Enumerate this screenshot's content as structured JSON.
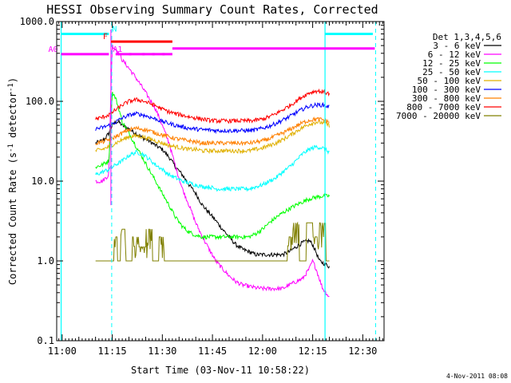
{
  "chart_data": {
    "type": "line",
    "title": "HESSI Observing Summary Count Rates, Corrected",
    "xlabel": "Start Time (03-Nov-11 10:58:22)",
    "ylabel": "Corrected Count Rate (s",
    "ylabel_sup1": "-1",
    "ylabel_mid": " detector",
    "ylabel_sup2": "-1",
    "ylabel_end": ")",
    "yscale": "log",
    "ylim": [
      0.1,
      1000
    ],
    "xlim_min": [
      -1.63,
      96.37
    ],
    "x_ticks": [
      {
        "min": 0,
        "label": "11:00"
      },
      {
        "min": 15,
        "label": "11:15"
      },
      {
        "min": 30,
        "label": "11:30"
      },
      {
        "min": 45,
        "label": "11:45"
      },
      {
        "min": 60,
        "label": "12:00"
      },
      {
        "min": 75,
        "label": "12:15"
      },
      {
        "min": 90,
        "label": "12:30"
      }
    ],
    "y_ticks": [
      {
        "v": 0.1,
        "label": "0.1"
      },
      {
        "v": 1,
        "label": "1.0"
      },
      {
        "v": 10,
        "label": "10.0"
      },
      {
        "v": 100,
        "label": "100.0"
      },
      {
        "v": 1000,
        "label": "1000.0"
      }
    ],
    "legend_title": "Det 1,3,4,5,6",
    "series": [
      {
        "name": "3 - 6 keV",
        "color": "#000000",
        "x": [
          10,
          12,
          13,
          14,
          15,
          16,
          17,
          18,
          20,
          22,
          24,
          26,
          28,
          30,
          32,
          34,
          36,
          38,
          40,
          42,
          44,
          46,
          48,
          50,
          52,
          54,
          56,
          58,
          60,
          62,
          64,
          66,
          68,
          70,
          72,
          74,
          75,
          76,
          77,
          78,
          79,
          80
        ],
        "y": [
          30,
          32,
          35,
          40,
          50,
          55,
          55,
          50,
          45,
          40,
          35,
          32,
          28,
          25,
          20,
          15,
          12,
          9,
          7,
          5,
          4,
          3.2,
          2.5,
          2,
          1.6,
          1.4,
          1.3,
          1.2,
          1.2,
          1.2,
          1.2,
          1.2,
          1.3,
          1.5,
          1.7,
          1.8,
          1.6,
          1.3,
          1.0,
          0.95,
          0.9,
          0.85
        ]
      },
      {
        "name": "6 - 12 keV",
        "color": "#ff00ff",
        "x": [
          10,
          12,
          14,
          14.5,
          15,
          16,
          17,
          18,
          20,
          22,
          24,
          26,
          28,
          30,
          32,
          34,
          36,
          38,
          40,
          42,
          44,
          46,
          48,
          50,
          52,
          54,
          56,
          58,
          60,
          62,
          64,
          66,
          68,
          70,
          72,
          74,
          75,
          76,
          77,
          78,
          79,
          80
        ],
        "y": [
          10,
          10,
          12,
          100,
          500,
          450,
          400,
          330,
          260,
          200,
          150,
          110,
          80,
          50,
          30,
          15,
          8,
          5,
          3,
          2,
          1.4,
          1,
          0.8,
          0.65,
          0.55,
          0.5,
          0.48,
          0.46,
          0.45,
          0.45,
          0.45,
          0.45,
          0.5,
          0.55,
          0.6,
          0.8,
          1.0,
          0.8,
          0.6,
          0.45,
          0.4,
          0.35
        ]
      },
      {
        "name": "12 - 25 keV",
        "color": "#00ff00",
        "x": [
          10,
          12,
          14,
          15,
          16,
          17,
          18,
          20,
          22,
          24,
          26,
          28,
          30,
          32,
          34,
          36,
          38,
          40,
          42,
          44,
          46,
          48,
          50,
          52,
          54,
          56,
          58,
          60,
          62,
          64,
          66,
          68,
          70,
          72,
          74,
          76,
          78,
          80
        ],
        "y": [
          15,
          16,
          18,
          130,
          110,
          80,
          55,
          40,
          28,
          20,
          14,
          10,
          7,
          5,
          3.5,
          2.7,
          2.3,
          2.1,
          2,
          2,
          2,
          2,
          2,
          2,
          2,
          2,
          2.2,
          2.5,
          3,
          3.5,
          4,
          4.5,
          5,
          5.5,
          6,
          6.3,
          6.5,
          6.5
        ]
      },
      {
        "name": "25 - 50 keV",
        "color": "#00ffff",
        "x": [
          10,
          12,
          14,
          16,
          18,
          20,
          22,
          24,
          26,
          28,
          30,
          32,
          34,
          36,
          38,
          40,
          42,
          44,
          46,
          48,
          50,
          52,
          54,
          56,
          58,
          60,
          62,
          64,
          66,
          68,
          70,
          72,
          74,
          76,
          78,
          80
        ],
        "y": [
          12,
          13,
          14,
          16,
          18,
          21,
          23,
          22,
          19,
          16,
          14,
          12,
          11,
          10,
          9.5,
          9,
          8.5,
          8.5,
          8,
          8,
          8,
          8,
          8,
          8,
          8.5,
          9,
          10,
          11,
          13,
          15,
          18,
          22,
          25,
          27,
          26,
          23
        ]
      },
      {
        "name": "50 - 100 keV",
        "color": "#e0b000",
        "x": [
          10,
          12,
          14,
          16,
          18,
          20,
          22,
          24,
          26,
          28,
          30,
          32,
          34,
          36,
          38,
          40,
          42,
          44,
          46,
          48,
          50,
          52,
          54,
          56,
          58,
          60,
          62,
          64,
          66,
          68,
          70,
          72,
          74,
          76,
          78,
          80
        ],
        "y": [
          24,
          25,
          27,
          30,
          33,
          36,
          37,
          36,
          34,
          32,
          30,
          28,
          27,
          26,
          25,
          25,
          24,
          24,
          24,
          24,
          24,
          24,
          24,
          24,
          25,
          26,
          28,
          30,
          33,
          37,
          42,
          47,
          52,
          55,
          54,
          50
        ]
      },
      {
        "name": "100 - 300 keV",
        "color": "#0000ff",
        "x": [
          10,
          12,
          14,
          16,
          18,
          20,
          22,
          24,
          26,
          28,
          30,
          32,
          34,
          36,
          38,
          40,
          42,
          44,
          46,
          48,
          50,
          52,
          54,
          56,
          58,
          60,
          62,
          64,
          66,
          68,
          70,
          72,
          74,
          76,
          78,
          80
        ],
        "y": [
          45,
          47,
          50,
          55,
          62,
          67,
          70,
          68,
          64,
          60,
          56,
          53,
          50,
          48,
          46,
          45,
          44,
          44,
          43,
          43,
          43,
          43,
          43,
          43,
          44,
          46,
          49,
          53,
          58,
          64,
          72,
          80,
          87,
          90,
          90,
          85
        ]
      },
      {
        "name": "300 - 800 keV",
        "color": "#ff8000",
        "x": [
          10,
          12,
          14,
          16,
          18,
          20,
          22,
          24,
          26,
          28,
          30,
          32,
          34,
          36,
          38,
          40,
          42,
          44,
          46,
          48,
          50,
          52,
          54,
          56,
          58,
          60,
          62,
          64,
          66,
          68,
          70,
          72,
          74,
          76,
          78,
          80
        ],
        "y": [
          30,
          31,
          33,
          36,
          40,
          44,
          46,
          45,
          43,
          40,
          38,
          36,
          34,
          33,
          32,
          31,
          30,
          30,
          30,
          30,
          30,
          30,
          30,
          30,
          31,
          32,
          34,
          37,
          40,
          44,
          49,
          54,
          58,
          60,
          59,
          55
        ]
      },
      {
        "name": "800 - 7000 keV",
        "color": "#ff0000",
        "x": [
          10,
          12,
          14,
          16,
          18,
          20,
          22,
          24,
          26,
          28,
          30,
          32,
          34,
          36,
          38,
          40,
          42,
          44,
          46,
          48,
          50,
          52,
          54,
          56,
          58,
          60,
          62,
          64,
          66,
          68,
          70,
          72,
          74,
          76,
          78,
          80
        ],
        "y": [
          60,
          63,
          68,
          78,
          90,
          100,
          105,
          102,
          95,
          88,
          80,
          74,
          70,
          67,
          64,
          62,
          60,
          58,
          57,
          57,
          57,
          57,
          57,
          57,
          58,
          60,
          64,
          70,
          78,
          88,
          100,
          115,
          128,
          135,
          132,
          125
        ]
      },
      {
        "name": "7000 - 20000 keV",
        "color": "#808000",
        "x": [
          10,
          14,
          15,
          16,
          17,
          18,
          20,
          22,
          24,
          26,
          28,
          30,
          31,
          32,
          34,
          36,
          38,
          40,
          42,
          44,
          46,
          48,
          50,
          52,
          54,
          56,
          58,
          60,
          62,
          64,
          66,
          67,
          68,
          70,
          72,
          74,
          76,
          78,
          80
        ],
        "y": [
          1,
          1,
          1,
          2,
          1,
          2.5,
          1,
          2,
          1.5,
          2.5,
          1,
          2,
          1,
          1,
          1,
          1,
          1,
          1,
          1,
          1,
          1,
          1,
          1,
          1,
          1,
          1,
          1,
          1,
          1,
          1,
          1,
          1,
          2,
          3,
          1,
          3,
          2,
          3,
          1
        ]
      }
    ],
    "vlines_cyan_solid_min": [
      -0.3,
      78.7
    ],
    "vlines_cyan_dash_min": [
      14.6,
      93.6
    ],
    "vline_magenta_min": 14.6,
    "flags": [
      {
        "label": "N",
        "color": "#00ffff",
        "value": 700,
        "segments": [
          [
            -0.3,
            14.0
          ],
          [
            78.7,
            93.0
          ]
        ]
      },
      {
        "label": "F",
        "color": "#ff0000",
        "value": 560,
        "segments": [
          [
            14.6,
            33.0
          ]
        ]
      },
      {
        "label": "A0",
        "color": "#ff00ff",
        "value": 390,
        "segments": [
          [
            -0.3,
            14.0
          ],
          [
            16.0,
            33.0
          ]
        ]
      },
      {
        "label": "",
        "color": "#ff00ff",
        "value": 460,
        "segments": [
          [
            33.0,
            93.6
          ]
        ]
      }
    ],
    "a1_label": "A1",
    "timestamp": "4-Nov-2011 08:08",
    "grid": false,
    "legend_position": "right"
  }
}
